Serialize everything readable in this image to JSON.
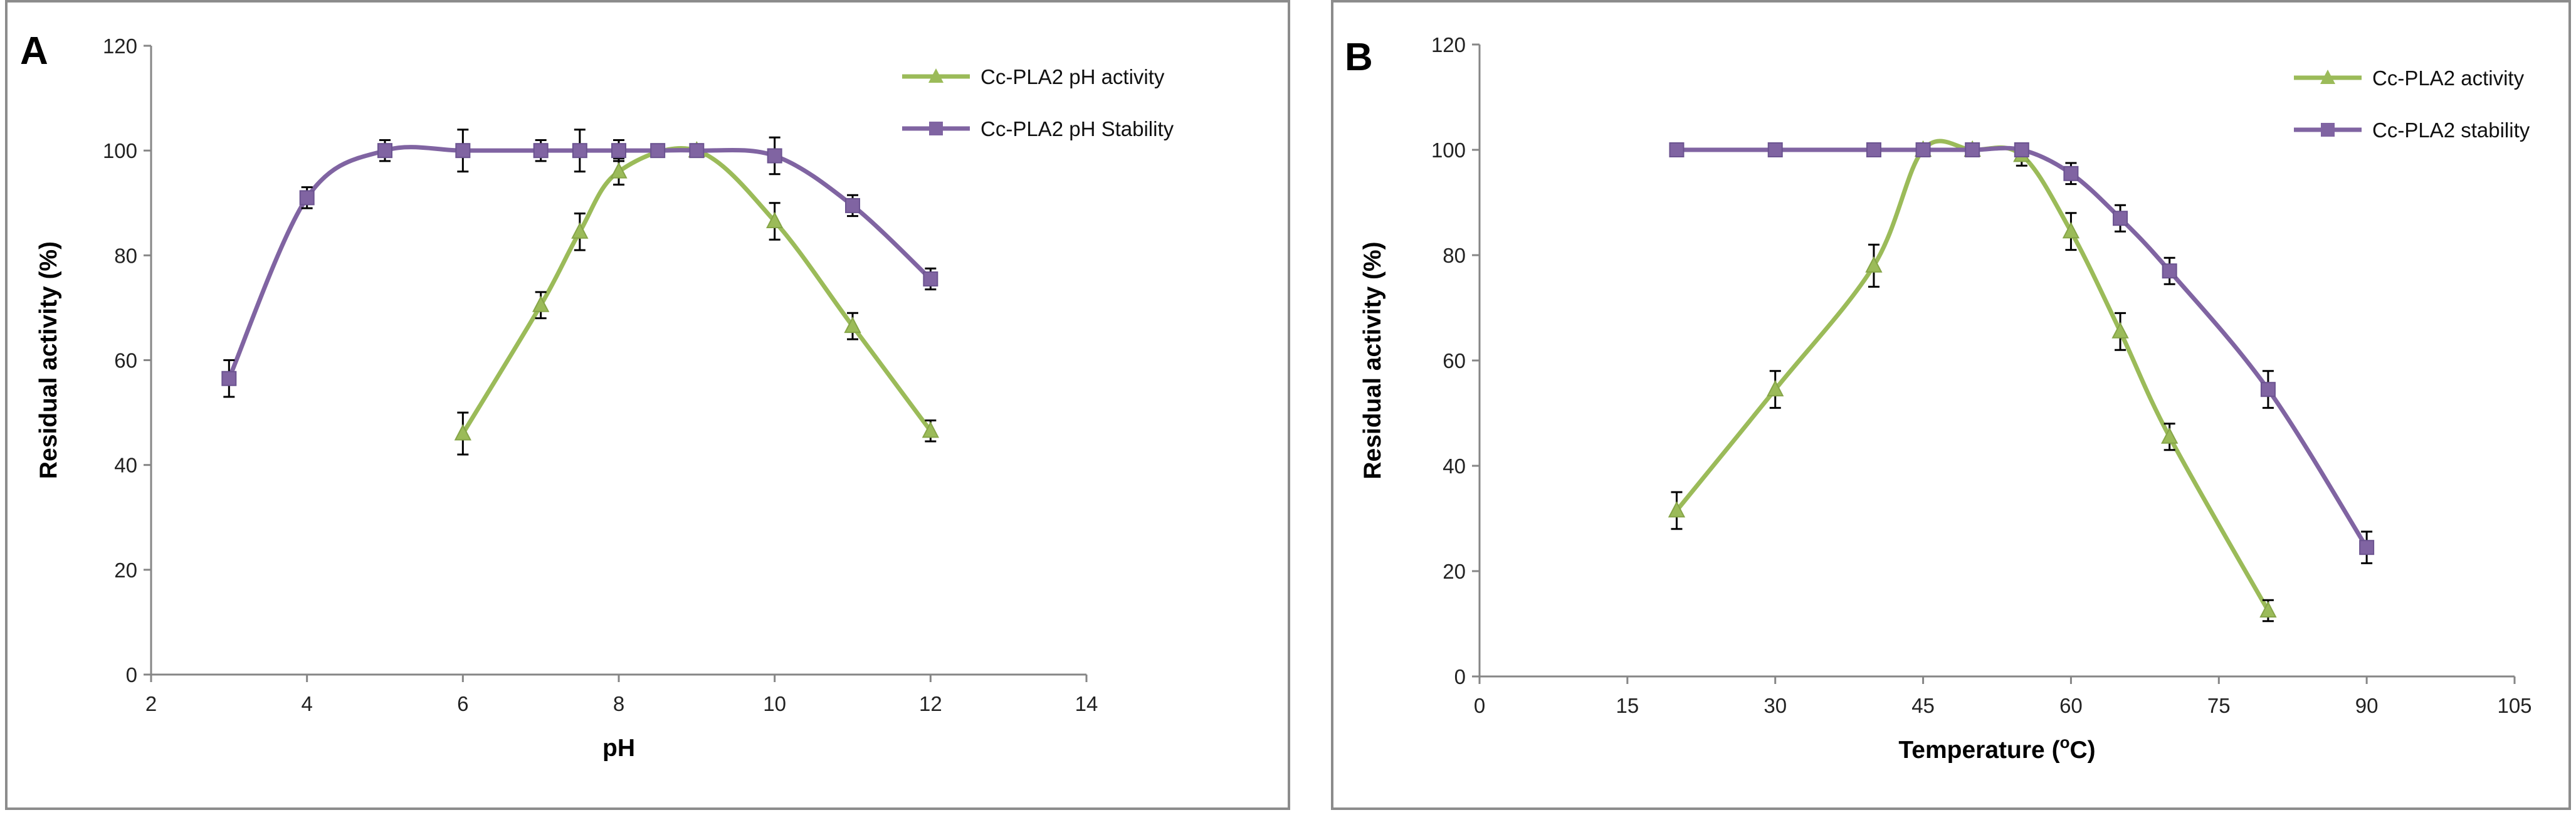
{
  "chart_data": [
    {
      "type": "line",
      "panel_label": "A",
      "xlabel": "pH",
      "ylabel": "Residual activity (%)",
      "xlim": [
        2,
        14
      ],
      "ylim": [
        0,
        120
      ],
      "xticks": [
        2,
        4,
        6,
        8,
        10,
        12,
        14
      ],
      "yticks": [
        0,
        20,
        40,
        60,
        80,
        100,
        120
      ],
      "legend_position": "top-right",
      "series": [
        {
          "name": "Cc-PLA2 pH activity",
          "color": "#9bbb59",
          "marker": "triangle",
          "x": [
            6,
            7,
            7.5,
            8,
            9,
            10,
            11,
            12
          ],
          "values": [
            46,
            70.5,
            84.5,
            96,
            100,
            86.5,
            66.5,
            46.5
          ],
          "errors": [
            4,
            2.5,
            3.5,
            2.5,
            1,
            3.5,
            2.5,
            2
          ]
        },
        {
          "name": "Cc-PLA2 pH Stability",
          "color": "#8064a2",
          "marker": "square",
          "x": [
            3,
            4,
            5,
            6,
            7,
            7.5,
            8,
            8.5,
            9,
            10,
            11,
            12
          ],
          "values": [
            56.5,
            91,
            100,
            100,
            100,
            100,
            100,
            100,
            100,
            99,
            89.5,
            75.5
          ],
          "errors": [
            3.5,
            2,
            2,
            4,
            2,
            4,
            2,
            1,
            1,
            3.5,
            2,
            2
          ]
        }
      ]
    },
    {
      "type": "line",
      "panel_label": "B",
      "xlabel": "Temperature (",
      "xlabel_sup": "o",
      "xlabel_end": "C)",
      "ylabel": "Residual activity (%)",
      "xlim": [
        0,
        105
      ],
      "ylim": [
        0,
        120
      ],
      "xticks": [
        0,
        15,
        30,
        45,
        60,
        75,
        90,
        105
      ],
      "yticks": [
        0,
        20,
        40,
        60,
        80,
        100,
        120
      ],
      "legend_position": "top-right",
      "series": [
        {
          "name": "Cc-PLA2 activity",
          "color": "#9bbb59",
          "marker": "triangle",
          "x": [
            20,
            30,
            40,
            45,
            50,
            55,
            60,
            65,
            70,
            80
          ],
          "values": [
            31.5,
            54.5,
            78,
            100,
            100,
            99,
            84.5,
            65.5,
            45.5,
            12.5
          ],
          "errors": [
            3.5,
            3.5,
            4,
            1,
            1,
            2,
            3.5,
            3.5,
            2.5,
            2
          ]
        },
        {
          "name": "Cc-PLA2 stability",
          "color": "#8064a2",
          "marker": "square",
          "x": [
            20,
            30,
            40,
            45,
            50,
            55,
            60,
            65,
            70,
            80,
            90
          ],
          "values": [
            100,
            100,
            100,
            100,
            100,
            100,
            95.5,
            87,
            77,
            54.5,
            24.5
          ],
          "errors": [
            0.5,
            0.5,
            0.5,
            0.5,
            0.5,
            1,
            2,
            2.5,
            2.5,
            3.5,
            3
          ]
        }
      ]
    }
  ]
}
